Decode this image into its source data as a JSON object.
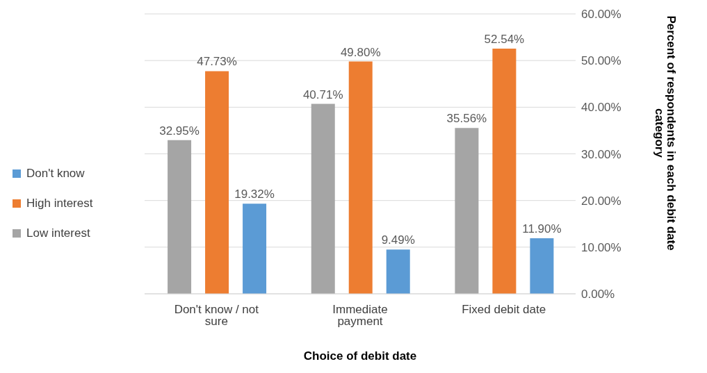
{
  "chart_data": {
    "type": "bar",
    "xlabel": "Choice of debit date",
    "ylabel": "Percent of respondents in each debit date category",
    "categories": [
      "Don't know / not sure",
      "Immediate payment",
      "Fixed debit date"
    ],
    "series": [
      {
        "name": "Low interest",
        "color": "#a5a5a5",
        "values": [
          32.95,
          40.71,
          35.56
        ],
        "value_labels": [
          "32.95%",
          "40.71%",
          "35.56%"
        ]
      },
      {
        "name": "High interest",
        "color": "#ed7d31",
        "values": [
          47.73,
          49.8,
          52.54
        ],
        "value_labels": [
          "47.73%",
          "49.80%",
          "52.54%"
        ]
      },
      {
        "name": "Don't know",
        "color": "#5b9bd5",
        "values": [
          19.32,
          9.49,
          11.9
        ],
        "value_labels": [
          "19.32%",
          "9.49%",
          "11.90%"
        ]
      }
    ],
    "ylim": [
      0,
      60
    ],
    "yticks": [
      {
        "value": 0,
        "label": "0.00%"
      },
      {
        "value": 10,
        "label": "10.00%"
      },
      {
        "value": 20,
        "label": "20.00%"
      },
      {
        "value": 30,
        "label": "30.00%"
      },
      {
        "value": 40,
        "label": "40.00%"
      },
      {
        "value": 50,
        "label": "50.00%"
      },
      {
        "value": 60,
        "label": "60.00%"
      }
    ],
    "grid": "y",
    "legend": "left"
  }
}
